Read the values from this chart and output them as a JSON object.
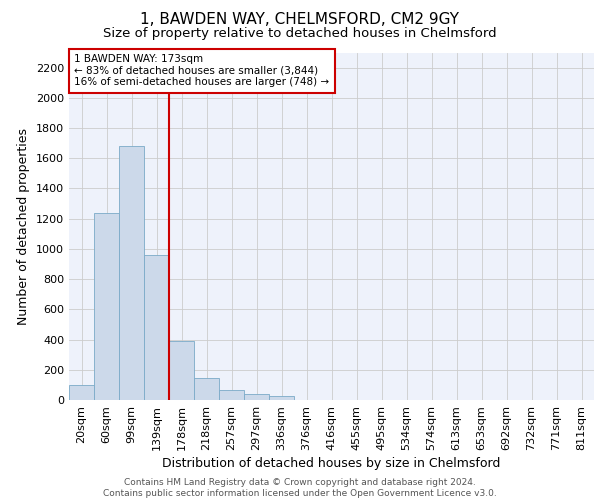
{
  "title": "1, BAWDEN WAY, CHELMSFORD, CM2 9GY",
  "subtitle": "Size of property relative to detached houses in Chelmsford",
  "xlabel": "Distribution of detached houses by size in Chelmsford",
  "ylabel": "Number of detached properties",
  "categories": [
    "20sqm",
    "60sqm",
    "99sqm",
    "139sqm",
    "178sqm",
    "218sqm",
    "257sqm",
    "297sqm",
    "336sqm",
    "376sqm",
    "416sqm",
    "455sqm",
    "495sqm",
    "534sqm",
    "574sqm",
    "613sqm",
    "653sqm",
    "692sqm",
    "732sqm",
    "771sqm",
    "811sqm"
  ],
  "values": [
    100,
    1240,
    1680,
    960,
    390,
    145,
    65,
    40,
    25,
    0,
    0,
    0,
    0,
    0,
    0,
    0,
    0,
    0,
    0,
    0,
    0
  ],
  "bar_color": "#ccd9ea",
  "bar_edge_color": "#7aaac8",
  "grid_color": "#cccccc",
  "background_color": "#eef2fb",
  "vline_color": "#cc0000",
  "annotation_text": "1 BAWDEN WAY: 173sqm\n← 83% of detached houses are smaller (3,844)\n16% of semi-detached houses are larger (748) →",
  "annotation_box_edge_color": "#cc0000",
  "footer_text": "Contains HM Land Registry data © Crown copyright and database right 2024.\nContains public sector information licensed under the Open Government Licence v3.0.",
  "ylim": [
    0,
    2300
  ],
  "yticks": [
    0,
    200,
    400,
    600,
    800,
    1000,
    1200,
    1400,
    1600,
    1800,
    2000,
    2200
  ],
  "title_fontsize": 11,
  "subtitle_fontsize": 9.5,
  "ylabel_fontsize": 9,
  "xlabel_fontsize": 9,
  "tick_fontsize": 8,
  "annotation_fontsize": 7.5,
  "footer_fontsize": 6.5
}
